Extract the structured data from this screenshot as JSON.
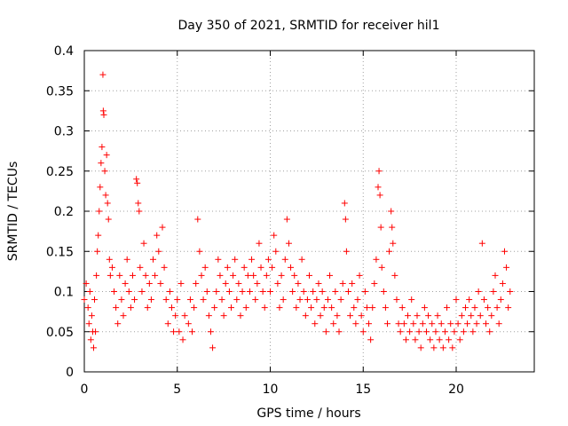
{
  "chart_data": {
    "type": "scatter",
    "title": "Day 350 of 2021, SRMTID for receiver hil1",
    "xlabel": "GPS time / hours",
    "ylabel": "SRMTID / TECUs",
    "xlim": [
      0,
      24.2
    ],
    "ylim": [
      0,
      0.4
    ],
    "xticks": [
      0,
      5,
      10,
      15,
      20
    ],
    "xtick_labels": [
      "0",
      "5",
      "10",
      "15",
      "20"
    ],
    "yticks": [
      0,
      0.05,
      0.1,
      0.15,
      0.2,
      0.25,
      0.3,
      0.35,
      0.4
    ],
    "ytick_labels": [
      "0",
      "0.05",
      "0.1",
      "0.15",
      "0.2",
      "0.25",
      "0.3",
      "0.35",
      "0.4"
    ],
    "grid": true,
    "marker": "+",
    "series": [
      {
        "name": "hil1",
        "color": "#ff0000",
        "points": [
          [
            0.0,
            0.09
          ],
          [
            0.1,
            0.11
          ],
          [
            0.2,
            0.08
          ],
          [
            0.25,
            0.06
          ],
          [
            0.3,
            0.1
          ],
          [
            0.35,
            0.04
          ],
          [
            0.4,
            0.07
          ],
          [
            0.45,
            0.05
          ],
          [
            0.5,
            0.03
          ],
          [
            0.55,
            0.09
          ],
          [
            0.6,
            0.05
          ],
          [
            0.65,
            0.12
          ],
          [
            0.7,
            0.15
          ],
          [
            0.75,
            0.17
          ],
          [
            0.8,
            0.2
          ],
          [
            0.85,
            0.23
          ],
          [
            0.9,
            0.26
          ],
          [
            0.95,
            0.28
          ],
          [
            1.0,
            0.37
          ],
          [
            1.02,
            0.325
          ],
          [
            1.05,
            0.32
          ],
          [
            1.1,
            0.25
          ],
          [
            1.15,
            0.22
          ],
          [
            1.2,
            0.27
          ],
          [
            1.25,
            0.21
          ],
          [
            1.3,
            0.19
          ],
          [
            1.35,
            0.14
          ],
          [
            1.4,
            0.12
          ],
          [
            1.5,
            0.13
          ],
          [
            1.6,
            0.1
          ],
          [
            1.7,
            0.08
          ],
          [
            1.8,
            0.06
          ],
          [
            1.9,
            0.12
          ],
          [
            2.0,
            0.09
          ],
          [
            2.1,
            0.07
          ],
          [
            2.2,
            0.11
          ],
          [
            2.3,
            0.14
          ],
          [
            2.4,
            0.1
          ],
          [
            2.5,
            0.08
          ],
          [
            2.6,
            0.12
          ],
          [
            2.7,
            0.09
          ],
          [
            2.8,
            0.24
          ],
          [
            2.85,
            0.235
          ],
          [
            2.9,
            0.21
          ],
          [
            2.95,
            0.2
          ],
          [
            3.0,
            0.13
          ],
          [
            3.1,
            0.1
          ],
          [
            3.2,
            0.16
          ],
          [
            3.3,
            0.12
          ],
          [
            3.4,
            0.08
          ],
          [
            3.5,
            0.11
          ],
          [
            3.6,
            0.09
          ],
          [
            3.7,
            0.14
          ],
          [
            3.8,
            0.12
          ],
          [
            3.9,
            0.17
          ],
          [
            4.0,
            0.15
          ],
          [
            4.1,
            0.11
          ],
          [
            4.2,
            0.18
          ],
          [
            4.3,
            0.13
          ],
          [
            4.4,
            0.09
          ],
          [
            4.5,
            0.06
          ],
          [
            4.6,
            0.1
          ],
          [
            4.7,
            0.08
          ],
          [
            4.8,
            0.05
          ],
          [
            4.9,
            0.07
          ],
          [
            5.0,
            0.09
          ],
          [
            5.1,
            0.05
          ],
          [
            5.2,
            0.11
          ],
          [
            5.3,
            0.04
          ],
          [
            5.4,
            0.07
          ],
          [
            5.6,
            0.06
          ],
          [
            5.7,
            0.09
          ],
          [
            5.8,
            0.05
          ],
          [
            5.9,
            0.08
          ],
          [
            6.0,
            0.11
          ],
          [
            6.1,
            0.19
          ],
          [
            6.2,
            0.15
          ],
          [
            6.3,
            0.12
          ],
          [
            6.4,
            0.09
          ],
          [
            6.5,
            0.13
          ],
          [
            6.6,
            0.1
          ],
          [
            6.7,
            0.07
          ],
          [
            6.8,
            0.05
          ],
          [
            6.9,
            0.03
          ],
          [
            7.0,
            0.08
          ],
          [
            7.1,
            0.1
          ],
          [
            7.2,
            0.14
          ],
          [
            7.3,
            0.12
          ],
          [
            7.4,
            0.09
          ],
          [
            7.5,
            0.07
          ],
          [
            7.6,
            0.11
          ],
          [
            7.7,
            0.13
          ],
          [
            7.8,
            0.1
          ],
          [
            7.9,
            0.08
          ],
          [
            8.0,
            0.12
          ],
          [
            8.1,
            0.14
          ],
          [
            8.2,
            0.09
          ],
          [
            8.3,
            0.11
          ],
          [
            8.4,
            0.07
          ],
          [
            8.5,
            0.1
          ],
          [
            8.6,
            0.13
          ],
          [
            8.7,
            0.08
          ],
          [
            8.8,
            0.12
          ],
          [
            8.9,
            0.1
          ],
          [
            9.0,
            0.14
          ],
          [
            9.1,
            0.12
          ],
          [
            9.2,
            0.09
          ],
          [
            9.3,
            0.11
          ],
          [
            9.4,
            0.16
          ],
          [
            9.5,
            0.13
          ],
          [
            9.6,
            0.1
          ],
          [
            9.7,
            0.08
          ],
          [
            9.8,
            0.12
          ],
          [
            9.9,
            0.14
          ],
          [
            10.0,
            0.1
          ],
          [
            10.1,
            0.13
          ],
          [
            10.2,
            0.17
          ],
          [
            10.3,
            0.15
          ],
          [
            10.4,
            0.11
          ],
          [
            10.5,
            0.08
          ],
          [
            10.6,
            0.12
          ],
          [
            10.7,
            0.09
          ],
          [
            10.8,
            0.14
          ],
          [
            10.9,
            0.19
          ],
          [
            11.0,
            0.16
          ],
          [
            11.1,
            0.13
          ],
          [
            11.2,
            0.1
          ],
          [
            11.3,
            0.12
          ],
          [
            11.4,
            0.08
          ],
          [
            11.5,
            0.11
          ],
          [
            11.6,
            0.09
          ],
          [
            11.7,
            0.14
          ],
          [
            11.8,
            0.1
          ],
          [
            11.9,
            0.07
          ],
          [
            12.0,
            0.09
          ],
          [
            12.1,
            0.12
          ],
          [
            12.2,
            0.08
          ],
          [
            12.3,
            0.1
          ],
          [
            12.4,
            0.06
          ],
          [
            12.5,
            0.09
          ],
          [
            12.6,
            0.11
          ],
          [
            12.7,
            0.07
          ],
          [
            12.8,
            0.1
          ],
          [
            12.9,
            0.08
          ],
          [
            13.0,
            0.05
          ],
          [
            13.1,
            0.09
          ],
          [
            13.2,
            0.12
          ],
          [
            13.3,
            0.08
          ],
          [
            13.4,
            0.06
          ],
          [
            13.5,
            0.1
          ],
          [
            13.6,
            0.07
          ],
          [
            13.7,
            0.05
          ],
          [
            13.8,
            0.09
          ],
          [
            13.9,
            0.11
          ],
          [
            14.0,
            0.21
          ],
          [
            14.05,
            0.19
          ],
          [
            14.1,
            0.15
          ],
          [
            14.2,
            0.1
          ],
          [
            14.3,
            0.07
          ],
          [
            14.4,
            0.11
          ],
          [
            14.5,
            0.08
          ],
          [
            14.6,
            0.06
          ],
          [
            14.7,
            0.09
          ],
          [
            14.8,
            0.12
          ],
          [
            14.9,
            0.07
          ],
          [
            15.0,
            0.05
          ],
          [
            15.1,
            0.1
          ],
          [
            15.2,
            0.08
          ],
          [
            15.3,
            0.06
          ],
          [
            15.4,
            0.04
          ],
          [
            15.5,
            0.08
          ],
          [
            15.6,
            0.11
          ],
          [
            15.7,
            0.14
          ],
          [
            15.8,
            0.23
          ],
          [
            15.85,
            0.25
          ],
          [
            15.9,
            0.22
          ],
          [
            15.95,
            0.18
          ],
          [
            16.0,
            0.13
          ],
          [
            16.1,
            0.1
          ],
          [
            16.2,
            0.08
          ],
          [
            16.3,
            0.06
          ],
          [
            16.4,
            0.15
          ],
          [
            16.5,
            0.2
          ],
          [
            16.55,
            0.18
          ],
          [
            16.6,
            0.16
          ],
          [
            16.7,
            0.12
          ],
          [
            16.8,
            0.09
          ],
          [
            16.9,
            0.06
          ],
          [
            17.0,
            0.05
          ],
          [
            17.1,
            0.08
          ],
          [
            17.2,
            0.06
          ],
          [
            17.3,
            0.04
          ],
          [
            17.4,
            0.07
          ],
          [
            17.5,
            0.05
          ],
          [
            17.6,
            0.09
          ],
          [
            17.7,
            0.06
          ],
          [
            17.8,
            0.04
          ],
          [
            17.9,
            0.07
          ],
          [
            18.0,
            0.05
          ],
          [
            18.1,
            0.03
          ],
          [
            18.2,
            0.06
          ],
          [
            18.3,
            0.08
          ],
          [
            18.4,
            0.05
          ],
          [
            18.5,
            0.07
          ],
          [
            18.6,
            0.04
          ],
          [
            18.7,
            0.06
          ],
          [
            18.8,
            0.03
          ],
          [
            18.9,
            0.05
          ],
          [
            19.0,
            0.07
          ],
          [
            19.1,
            0.04
          ],
          [
            19.2,
            0.06
          ],
          [
            19.3,
            0.03
          ],
          [
            19.4,
            0.05
          ],
          [
            19.5,
            0.08
          ],
          [
            19.6,
            0.04
          ],
          [
            19.7,
            0.06
          ],
          [
            19.8,
            0.03
          ],
          [
            19.9,
            0.05
          ],
          [
            20.0,
            0.09
          ],
          [
            20.1,
            0.06
          ],
          [
            20.2,
            0.04
          ],
          [
            20.3,
            0.07
          ],
          [
            20.4,
            0.05
          ],
          [
            20.5,
            0.08
          ],
          [
            20.6,
            0.06
          ],
          [
            20.7,
            0.09
          ],
          [
            20.8,
            0.07
          ],
          [
            20.9,
            0.05
          ],
          [
            21.0,
            0.08
          ],
          [
            21.1,
            0.06
          ],
          [
            21.2,
            0.1
          ],
          [
            21.3,
            0.07
          ],
          [
            21.4,
            0.16
          ],
          [
            21.5,
            0.09
          ],
          [
            21.6,
            0.06
          ],
          [
            21.7,
            0.08
          ],
          [
            21.8,
            0.05
          ],
          [
            21.9,
            0.07
          ],
          [
            22.0,
            0.1
          ],
          [
            22.1,
            0.12
          ],
          [
            22.2,
            0.08
          ],
          [
            22.3,
            0.06
          ],
          [
            22.4,
            0.09
          ],
          [
            22.5,
            0.11
          ],
          [
            22.6,
            0.15
          ],
          [
            22.7,
            0.13
          ],
          [
            22.8,
            0.08
          ],
          [
            22.9,
            0.1
          ]
        ]
      }
    ]
  }
}
